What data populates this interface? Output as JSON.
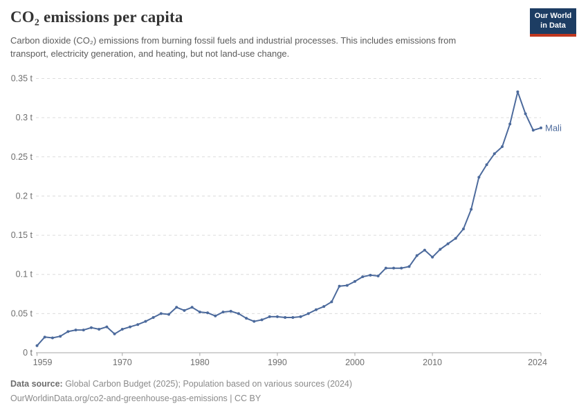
{
  "header": {
    "title": "CO₂ emissions per capita",
    "subtitle": "Carbon dioxide (CO₂) emissions from burning fossil fuels and industrial processes. This includes emissions from transport, electricity generation, and heating, but not land-use change.",
    "logo": {
      "line1": "Our World",
      "line2": "in Data"
    }
  },
  "chart_data": {
    "type": "line",
    "title": "CO₂ emissions per capita",
    "xlabel": "",
    "ylabel": "",
    "unit": "t",
    "grid": "horizontal-dashed",
    "legend_position": "end-of-line-label",
    "xlim": [
      1959,
      2024
    ],
    "ylim": [
      0,
      0.35
    ],
    "x_ticks": [
      1959,
      1970,
      1980,
      1990,
      2000,
      2010,
      2024
    ],
    "y_ticks": [
      0,
      0.05,
      0.1,
      0.15,
      0.2,
      0.25,
      0.3,
      0.35
    ],
    "y_tick_labels": [
      "0 t",
      "0.05 t",
      "0.1 t",
      "0.15 t",
      "0.2 t",
      "0.25 t",
      "0.3 t",
      "0.35 t"
    ],
    "x": [
      1959,
      1960,
      1961,
      1962,
      1963,
      1964,
      1965,
      1966,
      1967,
      1968,
      1969,
      1970,
      1971,
      1972,
      1973,
      1974,
      1975,
      1976,
      1977,
      1978,
      1979,
      1980,
      1981,
      1982,
      1983,
      1984,
      1985,
      1986,
      1987,
      1988,
      1989,
      1990,
      1991,
      1992,
      1993,
      1994,
      1995,
      1996,
      1997,
      1998,
      1999,
      2000,
      2001,
      2002,
      2003,
      2004,
      2005,
      2006,
      2007,
      2008,
      2009,
      2010,
      2011,
      2012,
      2013,
      2014,
      2015,
      2016,
      2017,
      2018,
      2019,
      2020,
      2021,
      2022,
      2023,
      2024
    ],
    "series": [
      {
        "name": "Mali",
        "color": "#4C6A9C",
        "values": [
          0.009,
          0.02,
          0.019,
          0.021,
          0.027,
          0.029,
          0.029,
          0.032,
          0.03,
          0.033,
          0.024,
          0.03,
          0.033,
          0.036,
          0.04,
          0.045,
          0.05,
          0.049,
          0.058,
          0.054,
          0.058,
          0.052,
          0.051,
          0.047,
          0.052,
          0.053,
          0.05,
          0.044,
          0.04,
          0.042,
          0.046,
          0.046,
          0.045,
          0.045,
          0.046,
          0.05,
          0.055,
          0.059,
          0.065,
          0.085,
          0.086,
          0.091,
          0.097,
          0.099,
          0.098,
          0.108,
          0.108,
          0.108,
          0.11,
          0.124,
          0.131,
          0.122,
          0.132,
          0.139,
          0.146,
          0.158,
          0.183,
          0.224,
          0.24,
          0.254,
          0.263,
          0.292,
          0.333,
          0.305,
          0.284,
          0.287
        ]
      }
    ],
    "end_label": "Mali"
  },
  "footer": {
    "source_label": "Data source:",
    "source_text": " Global Carbon Budget (2025); Population based on various sources (2024)",
    "link_text": "OurWorldinData.org/co2-and-greenhouse-gas-emissions",
    "separator": " | ",
    "license_text": "CC BY"
  },
  "colors": {
    "line": "#4C6A9C",
    "grid": "#dcdcdc",
    "axis": "#a5a5a5",
    "tick_text": "#6e6e6e",
    "logo_bg": "#1d3d63",
    "logo_stripe": "#c0371f"
  }
}
